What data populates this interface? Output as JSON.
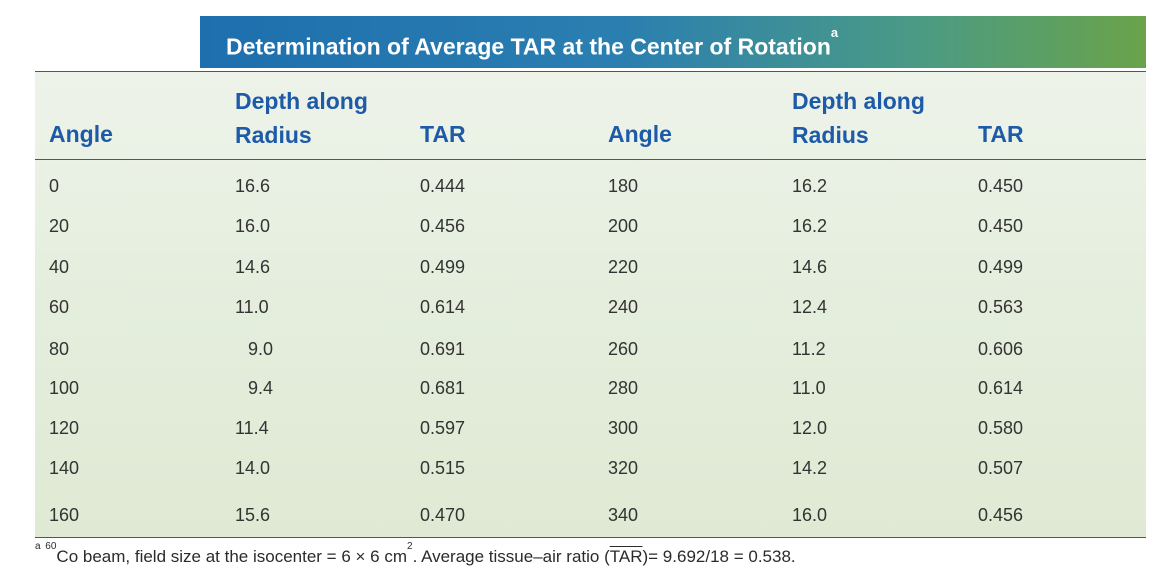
{
  "title": {
    "text": "Determination of Average TAR at the Center of Rotation",
    "marker": "a"
  },
  "headers": {
    "angle": "Angle",
    "depth_line1": "Depth along",
    "depth_line2": "Radius",
    "tar": "TAR"
  },
  "rows": [
    {
      "angle1": "0",
      "depth1": "16.6",
      "tar1": "0.444",
      "angle2": "180",
      "depth2": "16.2",
      "tar2": "0.450"
    },
    {
      "angle1": "20",
      "depth1": "16.0",
      "tar1": "0.456",
      "angle2": "200",
      "depth2": "16.2",
      "tar2": "0.450"
    },
    {
      "angle1": "40",
      "depth1": "14.6",
      "tar1": "0.499",
      "angle2": "220",
      "depth2": "14.6",
      "tar2": "0.499"
    },
    {
      "angle1": "60",
      "depth1": "11.0",
      "tar1": "0.614",
      "angle2": "240",
      "depth2": "12.4",
      "tar2": "0.563"
    },
    {
      "angle1": "80",
      "depth1": "9.0",
      "tar1": "0.691",
      "angle2": "260",
      "depth2": "11.2",
      "tar2": "0.606"
    },
    {
      "angle1": "100",
      "depth1": "9.4",
      "tar1": "0.681",
      "angle2": "280",
      "depth2": "11.0",
      "tar2": "0.614"
    },
    {
      "angle1": "120",
      "depth1": "11.4",
      "tar1": "0.597",
      "angle2": "300",
      "depth2": "12.0",
      "tar2": "0.580"
    },
    {
      "angle1": "140",
      "depth1": "14.0",
      "tar1": "0.515",
      "angle2": "320",
      "depth2": "14.2",
      "tar2": "0.507"
    },
    {
      "angle1": "160",
      "depth1": "15.6",
      "tar1": "0.470",
      "angle2": "340",
      "depth2": "16.0",
      "tar2": "0.456"
    }
  ],
  "footnote": {
    "marker": "a",
    "isotope_mass": "60",
    "text_before": "Co beam, field size at the isocenter = 6 × 6 cm",
    "area_exponent": "2",
    "text_middle": ". Average tissue–air ratio (",
    "tar_symbol": "TAR",
    "text_after": ")= 9.692/18 = 0.538."
  }
}
